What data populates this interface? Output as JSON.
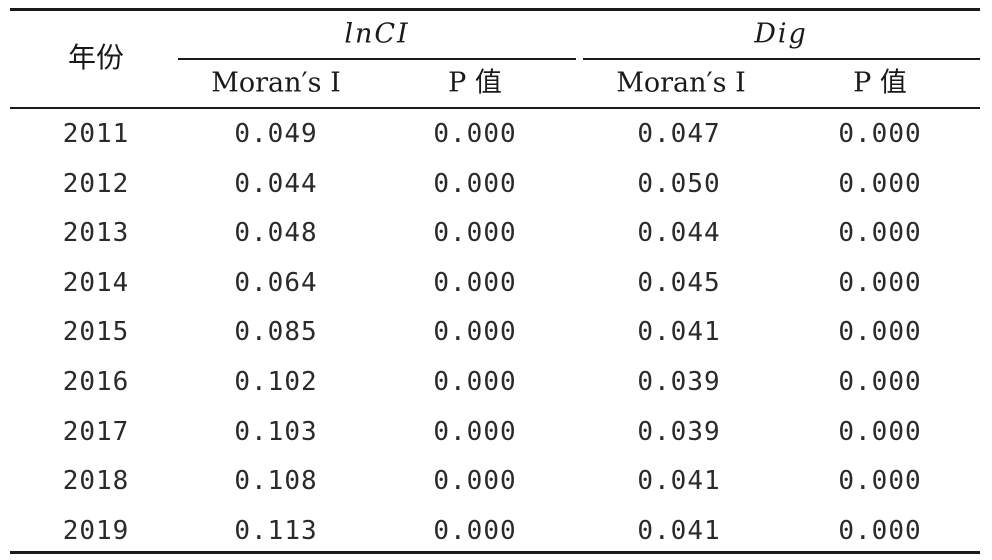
{
  "table": {
    "header": {
      "year_label": "年份",
      "groups": [
        {
          "label": "lnCI",
          "columns": [
            "Moran′s I",
            "P 值"
          ]
        },
        {
          "label": "Dig",
          "columns": [
            "Moran′s I",
            "P 值"
          ]
        }
      ]
    },
    "rows": [
      [
        "2011",
        "0.049",
        "0.000",
        "0.047",
        "0.000"
      ],
      [
        "2012",
        "0.044",
        "0.000",
        "0.050",
        "0.000"
      ],
      [
        "2013",
        "0.048",
        "0.000",
        "0.044",
        "0.000"
      ],
      [
        "2014",
        "0.064",
        "0.000",
        "0.045",
        "0.000"
      ],
      [
        "2015",
        "0.085",
        "0.000",
        "0.041",
        "0.000"
      ],
      [
        "2016",
        "0.102",
        "0.000",
        "0.039",
        "0.000"
      ],
      [
        "2017",
        "0.103",
        "0.000",
        "0.039",
        "0.000"
      ],
      [
        "2018",
        "0.108",
        "0.000",
        "0.041",
        "0.000"
      ],
      [
        "2019",
        "0.113",
        "0.000",
        "0.041",
        "0.000"
      ]
    ]
  }
}
